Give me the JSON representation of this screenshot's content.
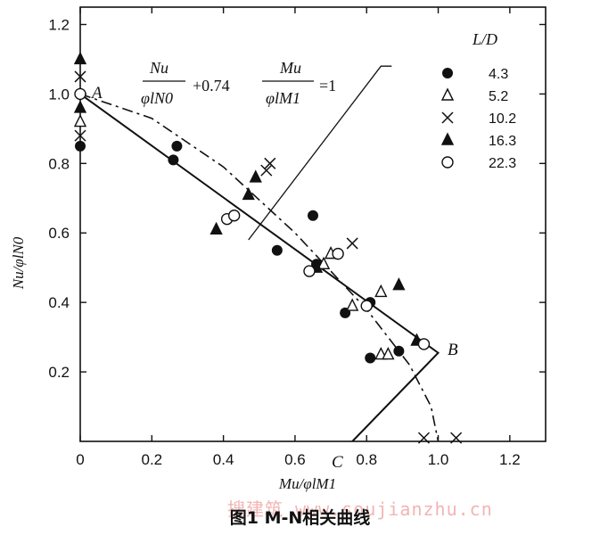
{
  "caption": "图1 M-N相关曲线",
  "watermark": "搜建筑 www.soujianzhu.cn",
  "chart_data": {
    "type": "scatter",
    "title": "",
    "xlabel": "Mu/φlM1",
    "ylabel": "Nu/φlN0",
    "xlim": [
      0,
      1.3
    ],
    "ylim": [
      0,
      1.25
    ],
    "xticks": [
      "0",
      "0.2",
      "0.4",
      "0.6",
      "0.8",
      "1.0",
      "1.2"
    ],
    "yticks": [
      "0.2",
      "0.4",
      "0.6",
      "0.8",
      "1.0",
      "1.2"
    ],
    "legend_title": "L/D",
    "legend_position": "top-right",
    "grid": false,
    "equation": {
      "frac1_num": "Nu",
      "frac1_den": "φlN0",
      "coef": "+0.74",
      "frac2_num": "Mu",
      "frac2_den": "φlM1",
      "rhs": "=1"
    },
    "point_labels": [
      "A",
      "B",
      "C"
    ],
    "series": [
      {
        "name": "4.3",
        "marker": "circle-filled",
        "x": [
          0.0,
          0.27,
          0.26,
          0.55,
          0.65,
          0.66,
          0.74,
          0.81,
          0.81,
          0.89
        ],
        "y": [
          0.85,
          0.85,
          0.81,
          0.55,
          0.65,
          0.51,
          0.37,
          0.4,
          0.24,
          0.26
        ]
      },
      {
        "name": "5.2",
        "marker": "triangle-open",
        "x": [
          0.0,
          0.68,
          0.7,
          0.76,
          0.84,
          0.84,
          0.86
        ],
        "y": [
          0.92,
          0.51,
          0.54,
          0.39,
          0.43,
          0.25,
          0.25
        ]
      },
      {
        "name": "10.2",
        "marker": "cross",
        "x": [
          0.0,
          0.0,
          0.52,
          0.53,
          0.76,
          0.96,
          1.05
        ],
        "y": [
          1.05,
          0.88,
          0.78,
          0.8,
          0.57,
          0.01,
          0.01
        ]
      },
      {
        "name": "16.3",
        "marker": "triangle-filled",
        "x": [
          0.0,
          0.0,
          0.38,
          0.47,
          0.49,
          0.66,
          0.89,
          0.94
        ],
        "y": [
          1.1,
          0.96,
          0.61,
          0.71,
          0.76,
          0.5,
          0.45,
          0.29
        ]
      },
      {
        "name": "22.3",
        "marker": "circle-open",
        "x": [
          0.0,
          0.41,
          0.43,
          0.64,
          0.72,
          0.8,
          0.96
        ],
        "y": [
          1.0,
          0.64,
          0.65,
          0.49,
          0.54,
          0.39,
          0.28
        ]
      }
    ],
    "lines": {
      "solid_ABC": {
        "x": [
          0.0,
          1.0,
          0.76
        ],
        "y": [
          1.0,
          0.255,
          0.0
        ]
      },
      "dashed_curve": {
        "x": [
          0.0,
          0.2,
          0.4,
          0.6,
          0.8,
          0.92,
          0.98,
          1.0
        ],
        "y": [
          1.0,
          0.93,
          0.79,
          0.6,
          0.38,
          0.22,
          0.1,
          0.0
        ]
      },
      "pointer": {
        "x": [
          0.47,
          0.84,
          0.87
        ],
        "y": [
          0.58,
          1.08,
          1.08
        ]
      }
    }
  }
}
